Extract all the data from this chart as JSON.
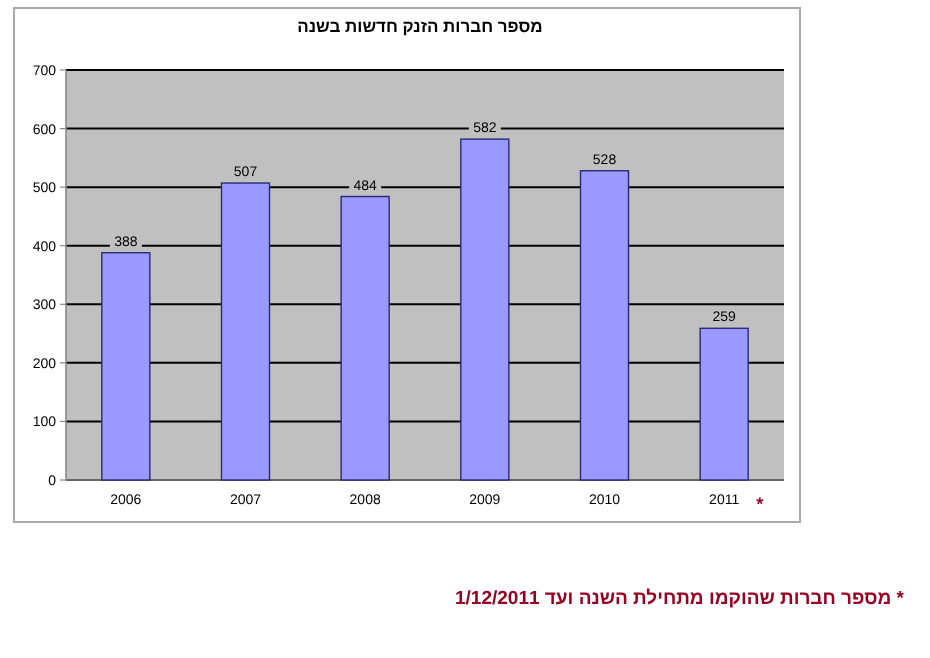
{
  "chart_data": {
    "type": "bar",
    "title": "מספר חברות הזנק חדשות בשנה",
    "categories": [
      "2006",
      "2007",
      "2008",
      "2009",
      "2010",
      "2011"
    ],
    "values": [
      388,
      507,
      484,
      582,
      528,
      259
    ],
    "color": "#9999ff",
    "ylim": [
      0,
      700
    ],
    "yticks": [
      0,
      100,
      200,
      300,
      400,
      500,
      600,
      700
    ],
    "grid": "y",
    "data_labels": true,
    "annotations": [
      {
        "text": "*",
        "x": "2011",
        "y": 0
      },
      "* מספר חברות שהוקמו מתחילת השנה ועד 1/12/2011"
    ]
  }
}
